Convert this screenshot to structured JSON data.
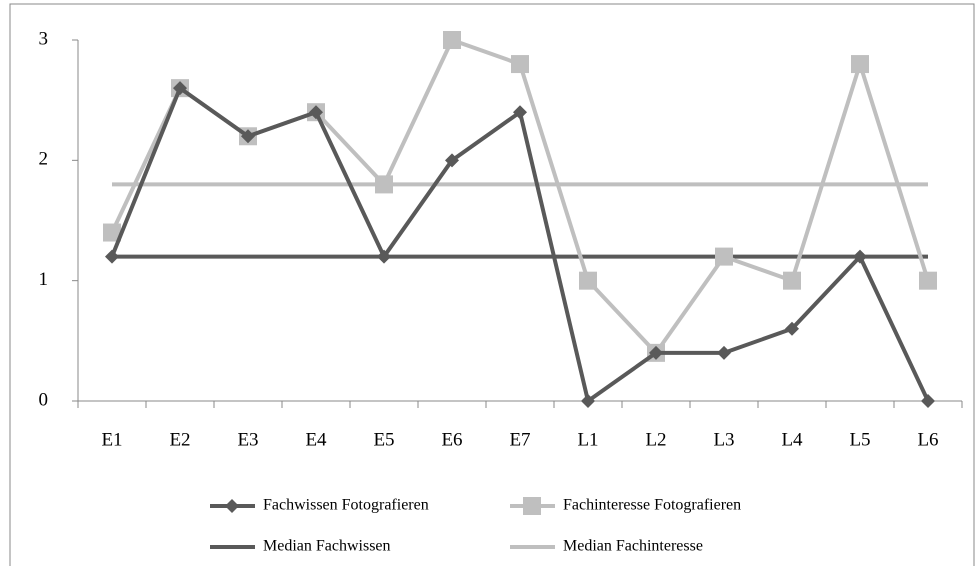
{
  "chart_data": {
    "type": "line",
    "categories": [
      "E1",
      "E2",
      "E3",
      "E4",
      "E5",
      "E6",
      "E7",
      "L1",
      "L2",
      "L3",
      "L4",
      "L5",
      "L6"
    ],
    "series": [
      {
        "name": "Fachwissen Fotografieren",
        "color": "#595959",
        "marker": "diamond",
        "values": [
          1.2,
          2.6,
          2.2,
          2.4,
          1.2,
          2.0,
          2.4,
          0,
          0.4,
          0.4,
          0.6,
          1.2,
          0
        ]
      },
      {
        "name": "Fachinteresse Fotografieren",
        "color": "#bfbfbf",
        "marker": "square",
        "values": [
          1.4,
          2.6,
          2.2,
          2.4,
          1.8,
          3.0,
          2.8,
          1.0,
          0.4,
          1.2,
          1.0,
          2.8,
          1.0
        ]
      },
      {
        "name": "Median Fachwissen",
        "color": "#595959",
        "marker": null,
        "values": [
          1.2,
          1.2,
          1.2,
          1.2,
          1.2,
          1.2,
          1.2,
          1.2,
          1.2,
          1.2,
          1.2,
          1.2,
          1.2
        ]
      },
      {
        "name": "Median Fachinteresse",
        "color": "#bfbfbf",
        "marker": null,
        "values": [
          1.8,
          1.8,
          1.8,
          1.8,
          1.8,
          1.8,
          1.8,
          1.8,
          1.8,
          1.8,
          1.8,
          1.8,
          1.8
        ]
      }
    ],
    "ylim": [
      0,
      3
    ],
    "yticks": [
      0,
      1,
      2,
      3
    ],
    "grid": false,
    "legend": "bottom"
  }
}
